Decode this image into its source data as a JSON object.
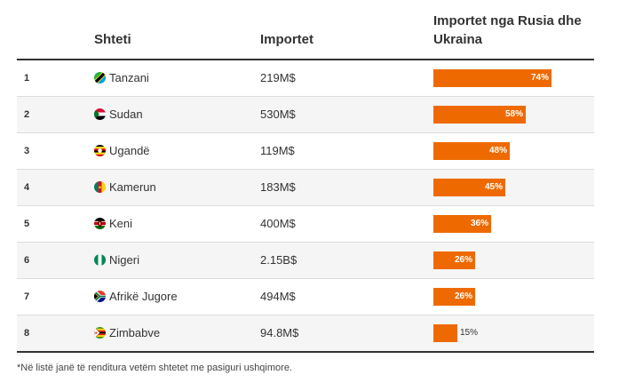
{
  "chart_data": {
    "type": "table",
    "columns": [
      "",
      "Shteti",
      "Importet",
      "Importet nga Rusia dhe Ukraina"
    ],
    "rows": [
      {
        "rank": "1",
        "country": "Tanzani",
        "flag": "tanzania-flag",
        "imports": "219M$",
        "share": 74,
        "share_label": "74%"
      },
      {
        "rank": "2",
        "country": "Sudan",
        "flag": "sudan-flag",
        "imports": "530M$",
        "share": 58,
        "share_label": "58%"
      },
      {
        "rank": "3",
        "country": "Ugandë",
        "flag": "uganda-flag",
        "imports": "119M$",
        "share": 48,
        "share_label": "48%"
      },
      {
        "rank": "4",
        "country": "Kamerun",
        "flag": "cameroon-flag",
        "imports": "183M$",
        "share": 45,
        "share_label": "45%"
      },
      {
        "rank": "5",
        "country": "Keni",
        "flag": "kenya-flag",
        "imports": "400M$",
        "share": 36,
        "share_label": "36%"
      },
      {
        "rank": "6",
        "country": "Nigeri",
        "flag": "nigeria-flag",
        "imports": "2.15B$",
        "share": 26,
        "share_label": "26%"
      },
      {
        "rank": "7",
        "country": "Afrikë Jugore",
        "flag": "south-africa-flag",
        "imports": "494M$",
        "share": 26,
        "share_label": "26%"
      },
      {
        "rank": "8",
        "country": "Zimbabve",
        "flag": "zimbabwe-flag",
        "imports": "94.8M$",
        "share": 15,
        "share_label": "15%"
      }
    ],
    "bar_color": "#ee6a00",
    "share_max": 100
  },
  "footnote": "*Në listë janë të renditura vetëm shtetet me pasiguri ushqimore."
}
